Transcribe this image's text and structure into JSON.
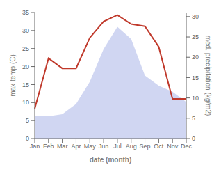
{
  "chart_data": {
    "type": "line",
    "xlabel": "date (month)",
    "ylabel": "max temp (C)",
    "y2label": "med. precipitation (kg/m2)",
    "categories": [
      "Jan",
      "Feb",
      "Mar",
      "Apr",
      "May",
      "Jun",
      "Jul",
      "Aug",
      "Sep",
      "Oct",
      "Nov",
      "Dec"
    ],
    "series": [
      {
        "type": "area",
        "color": "#aab4e8",
        "axis": "y2",
        "values": [
          5.5,
          5.5,
          6.0,
          8.5,
          14.0,
          22.0,
          27.5,
          24.5,
          15.5,
          13.0,
          11.5,
          9.0
        ]
      },
      {
        "type": "line",
        "color": "#c0392b",
        "values": [
          8.3,
          22.3,
          19.5,
          19.5,
          28.0,
          32.5,
          34.3,
          31.8,
          31.2,
          25.5,
          11.0,
          11.0
        ]
      }
    ],
    "ylim": [
      0,
      35
    ],
    "yticks": [
      0,
      5,
      10,
      15,
      20,
      25,
      30,
      35
    ],
    "y2lim": [
      0,
      31
    ],
    "y2ticks": [
      0,
      5,
      10,
      15,
      20,
      25,
      30
    ],
    "grid": false
  }
}
